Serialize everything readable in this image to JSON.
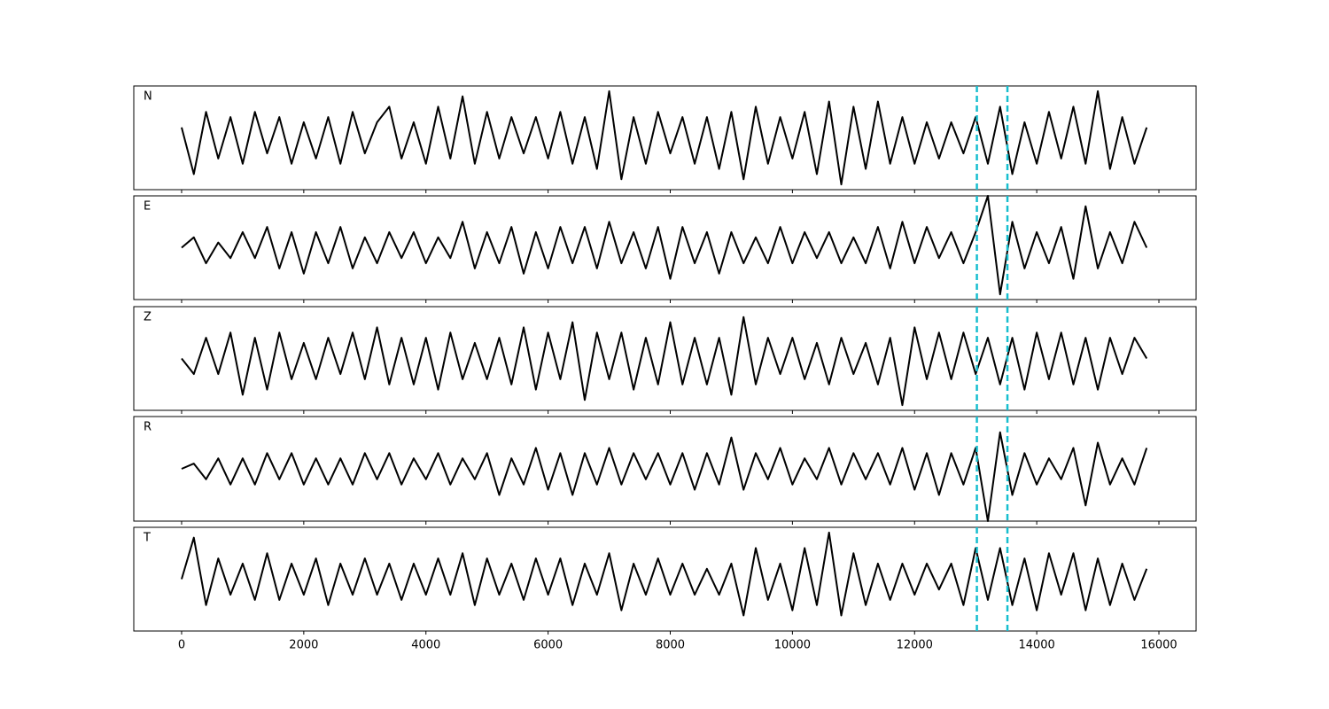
{
  "chart_data": [
    {
      "type": "line",
      "label": "N",
      "color": "#000000",
      "ylim": [
        -1,
        1
      ],
      "xlim": [
        -783,
        16609
      ],
      "xticks": [
        0,
        2000,
        4000,
        6000,
        8000,
        10000,
        12000,
        14000,
        16000
      ],
      "vlines": [
        13020,
        13520
      ],
      "vline_color": "#17becf",
      "x": [
        0,
        200,
        400,
        600,
        800,
        1000,
        1200,
        1400,
        1600,
        1800,
        2000,
        2200,
        2400,
        2600,
        2800,
        3000,
        3200,
        3400,
        3600,
        3800,
        4000,
        4200,
        4400,
        4600,
        4800,
        5000,
        5200,
        5400,
        5600,
        5800,
        6000,
        6200,
        6400,
        6600,
        6800,
        7000,
        7200,
        7400,
        7600,
        7800,
        8000,
        8200,
        8400,
        8600,
        8800,
        9000,
        9200,
        9400,
        9600,
        9800,
        10000,
        10200,
        10400,
        10600,
        10800,
        11000,
        11200,
        11400,
        11600,
        11800,
        12000,
        12200,
        12400,
        12600,
        12800,
        13000,
        13200,
        13400,
        13600,
        13800,
        14000,
        14200,
        14400,
        14600,
        14800,
        15000,
        15200,
        15400,
        15600,
        15800
      ],
      "values": [
        0.2,
        -0.7,
        0.5,
        -0.4,
        0.4,
        -0.5,
        0.5,
        -0.3,
        0.4,
        -0.5,
        0.3,
        -0.4,
        0.4,
        -0.5,
        0.5,
        -0.3,
        0.3,
        0.6,
        -0.4,
        0.3,
        -0.5,
        0.6,
        -0.4,
        0.8,
        -0.5,
        0.5,
        -0.4,
        0.4,
        -0.3,
        0.4,
        -0.4,
        0.5,
        -0.5,
        0.4,
        -0.6,
        0.9,
        -0.8,
        0.4,
        -0.5,
        0.5,
        -0.3,
        0.4,
        -0.5,
        0.4,
        -0.6,
        0.5,
        -0.8,
        0.6,
        -0.5,
        0.4,
        -0.4,
        0.5,
        -0.7,
        0.7,
        -0.9,
        0.6,
        -0.6,
        0.7,
        -0.5,
        0.4,
        -0.5,
        0.3,
        -0.4,
        0.3,
        -0.3,
        0.4,
        -0.5,
        0.6,
        -0.7,
        0.3,
        -0.5,
        0.5,
        -0.4,
        0.6,
        -0.5,
        0.9,
        -0.6,
        0.4,
        -0.5,
        0.2
      ]
    },
    {
      "type": "line",
      "label": "E",
      "color": "#000000",
      "ylim": [
        -1,
        1
      ],
      "xlim": [
        -783,
        16609
      ],
      "xticks": [
        0,
        2000,
        4000,
        6000,
        8000,
        10000,
        12000,
        14000,
        16000
      ],
      "vlines": [
        13020,
        13520
      ],
      "vline_color": "#17becf",
      "x": [
        0,
        200,
        400,
        600,
        800,
        1000,
        1200,
        1400,
        1600,
        1800,
        2000,
        2200,
        2400,
        2600,
        2800,
        3000,
        3200,
        3400,
        3600,
        3800,
        4000,
        4200,
        4400,
        4600,
        4800,
        5000,
        5200,
        5400,
        5600,
        5800,
        6000,
        6200,
        6400,
        6600,
        6800,
        7000,
        7200,
        7400,
        7600,
        7800,
        8000,
        8200,
        8400,
        8600,
        8800,
        9000,
        9200,
        9400,
        9600,
        9800,
        10000,
        10200,
        10400,
        10600,
        10800,
        11000,
        11200,
        11400,
        11600,
        11800,
        12000,
        12200,
        12400,
        12600,
        12800,
        13000,
        13200,
        13400,
        13600,
        13800,
        14000,
        14200,
        14400,
        14600,
        14800,
        15000,
        15200,
        15400,
        15600,
        15800
      ],
      "values": [
        0.0,
        0.2,
        -0.3,
        0.1,
        -0.2,
        0.3,
        -0.2,
        0.4,
        -0.4,
        0.3,
        -0.5,
        0.3,
        -0.3,
        0.4,
        -0.4,
        0.2,
        -0.3,
        0.3,
        -0.2,
        0.3,
        -0.3,
        0.2,
        -0.2,
        0.5,
        -0.4,
        0.3,
        -0.3,
        0.4,
        -0.5,
        0.3,
        -0.4,
        0.4,
        -0.3,
        0.4,
        -0.4,
        0.5,
        -0.3,
        0.3,
        -0.4,
        0.4,
        -0.6,
        0.4,
        -0.3,
        0.3,
        -0.5,
        0.3,
        -0.3,
        0.2,
        -0.3,
        0.4,
        -0.3,
        0.3,
        -0.2,
        0.3,
        -0.3,
        0.2,
        -0.3,
        0.4,
        -0.4,
        0.5,
        -0.3,
        0.4,
        -0.2,
        0.3,
        -0.3,
        0.3,
        1.0,
        -0.9,
        0.5,
        -0.4,
        0.3,
        -0.3,
        0.4,
        -0.6,
        0.8,
        -0.4,
        0.3,
        -0.3,
        0.5,
        0.0
      ]
    },
    {
      "type": "line",
      "label": "Z",
      "color": "#000000",
      "ylim": [
        -1,
        1
      ],
      "xlim": [
        -783,
        16609
      ],
      "xticks": [
        0,
        2000,
        4000,
        6000,
        8000,
        10000,
        12000,
        14000,
        16000
      ],
      "vlines": [
        13020,
        13520
      ],
      "vline_color": "#17becf",
      "x": [
        0,
        200,
        400,
        600,
        800,
        1000,
        1200,
        1400,
        1600,
        1800,
        2000,
        2200,
        2400,
        2600,
        2800,
        3000,
        3200,
        3400,
        3600,
        3800,
        4000,
        4200,
        4400,
        4600,
        4800,
        5000,
        5200,
        5400,
        5600,
        5800,
        6000,
        6200,
        6400,
        6600,
        6800,
        7000,
        7200,
        7400,
        7600,
        7800,
        8000,
        8200,
        8400,
        8600,
        8800,
        9000,
        9200,
        9400,
        9600,
        9800,
        10000,
        10200,
        10400,
        10600,
        10800,
        11000,
        11200,
        11400,
        11600,
        11800,
        12000,
        12200,
        12400,
        12600,
        12800,
        13000,
        13200,
        13400,
        13600,
        13800,
        14000,
        14200,
        14400,
        14600,
        14800,
        15000,
        15200,
        15400,
        15600,
        15800
      ],
      "values": [
        0.0,
        -0.3,
        0.4,
        -0.3,
        0.5,
        -0.7,
        0.4,
        -0.6,
        0.5,
        -0.4,
        0.3,
        -0.4,
        0.4,
        -0.3,
        0.5,
        -0.4,
        0.6,
        -0.5,
        0.4,
        -0.5,
        0.4,
        -0.6,
        0.5,
        -0.4,
        0.3,
        -0.4,
        0.4,
        -0.5,
        0.6,
        -0.6,
        0.5,
        -0.4,
        0.7,
        -0.8,
        0.5,
        -0.4,
        0.5,
        -0.6,
        0.4,
        -0.5,
        0.7,
        -0.5,
        0.4,
        -0.5,
        0.4,
        -0.7,
        0.8,
        -0.5,
        0.4,
        -0.3,
        0.4,
        -0.4,
        0.3,
        -0.5,
        0.4,
        -0.3,
        0.3,
        -0.5,
        0.4,
        -0.9,
        0.6,
        -0.4,
        0.5,
        -0.4,
        0.5,
        -0.3,
        0.4,
        -0.5,
        0.4,
        -0.6,
        0.5,
        -0.4,
        0.5,
        -0.5,
        0.4,
        -0.6,
        0.4,
        -0.3,
        0.4,
        0.0
      ]
    },
    {
      "type": "line",
      "label": "R",
      "color": "#000000",
      "ylim": [
        -1,
        1
      ],
      "xlim": [
        -783,
        16609
      ],
      "xticks": [
        0,
        2000,
        4000,
        6000,
        8000,
        10000,
        12000,
        14000,
        16000
      ],
      "vlines": [
        13020,
        13520
      ],
      "vline_color": "#17becf",
      "x": [
        0,
        200,
        400,
        600,
        800,
        1000,
        1200,
        1400,
        1600,
        1800,
        2000,
        2200,
        2400,
        2600,
        2800,
        3000,
        3200,
        3400,
        3600,
        3800,
        4000,
        4200,
        4400,
        4600,
        4800,
        5000,
        5200,
        5400,
        5600,
        5800,
        6000,
        6200,
        6400,
        6600,
        6800,
        7000,
        7200,
        7400,
        7600,
        7800,
        8000,
        8200,
        8400,
        8600,
        8800,
        9000,
        9200,
        9400,
        9600,
        9800,
        10000,
        10200,
        10400,
        10600,
        10800,
        11000,
        11200,
        11400,
        11600,
        11800,
        12000,
        12200,
        12400,
        12600,
        12800,
        13000,
        13200,
        13400,
        13600,
        13800,
        14000,
        14200,
        14400,
        14600,
        14800,
        15000,
        15200,
        15400,
        15600,
        15800
      ],
      "values": [
        0.0,
        0.1,
        -0.2,
        0.2,
        -0.3,
        0.2,
        -0.3,
        0.3,
        -0.2,
        0.3,
        -0.3,
        0.2,
        -0.3,
        0.2,
        -0.3,
        0.3,
        -0.2,
        0.3,
        -0.3,
        0.2,
        -0.2,
        0.3,
        -0.3,
        0.2,
        -0.2,
        0.3,
        -0.5,
        0.2,
        -0.3,
        0.4,
        -0.4,
        0.3,
        -0.5,
        0.3,
        -0.3,
        0.4,
        -0.3,
        0.3,
        -0.2,
        0.3,
        -0.3,
        0.3,
        -0.4,
        0.3,
        -0.3,
        0.6,
        -0.4,
        0.3,
        -0.2,
        0.4,
        -0.3,
        0.2,
        -0.2,
        0.4,
        -0.3,
        0.3,
        -0.2,
        0.3,
        -0.3,
        0.4,
        -0.4,
        0.3,
        -0.5,
        0.3,
        -0.3,
        0.4,
        -1.0,
        0.7,
        -0.5,
        0.3,
        -0.3,
        0.2,
        -0.2,
        0.4,
        -0.7,
        0.5,
        -0.3,
        0.2,
        -0.3,
        0.4
      ]
    },
    {
      "type": "line",
      "label": "T",
      "color": "#000000",
      "ylim": [
        -1,
        1
      ],
      "xlim": [
        -783,
        16609
      ],
      "xticks": [
        0,
        2000,
        4000,
        6000,
        8000,
        10000,
        12000,
        14000,
        16000
      ],
      "vlines": [
        13020,
        13520
      ],
      "vline_color": "#17becf",
      "x": [
        0,
        200,
        400,
        600,
        800,
        1000,
        1200,
        1400,
        1600,
        1800,
        2000,
        2200,
        2400,
        2600,
        2800,
        3000,
        3200,
        3400,
        3600,
        3800,
        4000,
        4200,
        4400,
        4600,
        4800,
        5000,
        5200,
        5400,
        5600,
        5800,
        6000,
        6200,
        6400,
        6600,
        6800,
        7000,
        7200,
        7400,
        7600,
        7800,
        8000,
        8200,
        8400,
        8600,
        8800,
        9000,
        9200,
        9400,
        9600,
        9800,
        10000,
        10200,
        10400,
        10600,
        10800,
        11000,
        11200,
        11400,
        11600,
        11800,
        12000,
        12200,
        12400,
        12600,
        12800,
        13000,
        13200,
        13400,
        13600,
        13800,
        14000,
        14200,
        14400,
        14600,
        14800,
        15000,
        15200,
        15400,
        15600,
        15800
      ],
      "values": [
        0.0,
        0.8,
        -0.5,
        0.4,
        -0.3,
        0.3,
        -0.4,
        0.5,
        -0.4,
        0.3,
        -0.3,
        0.4,
        -0.5,
        0.3,
        -0.3,
        0.4,
        -0.3,
        0.3,
        -0.4,
        0.3,
        -0.3,
        0.4,
        -0.3,
        0.5,
        -0.5,
        0.4,
        -0.3,
        0.3,
        -0.4,
        0.4,
        -0.3,
        0.4,
        -0.5,
        0.3,
        -0.3,
        0.5,
        -0.6,
        0.3,
        -0.3,
        0.4,
        -0.3,
        0.3,
        -0.3,
        0.2,
        -0.3,
        0.3,
        -0.7,
        0.6,
        -0.4,
        0.3,
        -0.6,
        0.6,
        -0.5,
        0.9,
        -0.7,
        0.5,
        -0.5,
        0.3,
        -0.4,
        0.3,
        -0.3,
        0.3,
        -0.2,
        0.3,
        -0.5,
        0.6,
        -0.4,
        0.6,
        -0.5,
        0.4,
        -0.6,
        0.5,
        -0.3,
        0.5,
        -0.6,
        0.4,
        -0.5,
        0.3,
        -0.4,
        0.2
      ]
    }
  ]
}
